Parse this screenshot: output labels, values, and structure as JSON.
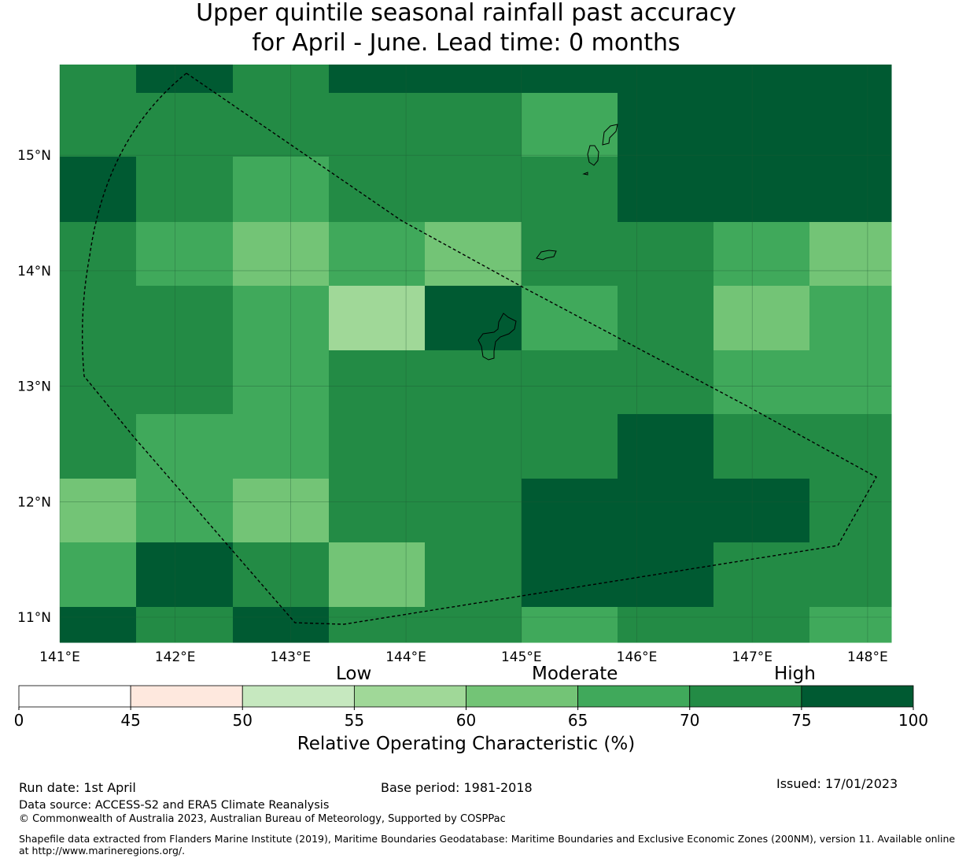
{
  "title": {
    "line1": "Upper quintile seasonal rainfall past accuracy",
    "line2": "for April - June. Lead time: 0 months"
  },
  "map": {
    "lon_range": [
      141.0,
      148.2
    ],
    "lat_range": [
      10.8,
      15.8
    ],
    "lon_labels": [
      "141°E",
      "142°E",
      "143°E",
      "144°E",
      "145°E",
      "146°E",
      "147°E",
      "148°E"
    ],
    "lat_labels": [
      "11°N",
      "12°N",
      "13°N",
      "14°N",
      "15°N"
    ],
    "class_colors": [
      "#ffffff",
      "#fee8de",
      "#c6e8bf",
      "#a0d898",
      "#73c476",
      "#40a95b",
      "#238b45",
      "#005a32"
    ],
    "grid_rows": [
      [
        6,
        7,
        6,
        7,
        7,
        7,
        7,
        7,
        7
      ],
      [
        6,
        6,
        6,
        6,
        6,
        5,
        7,
        7,
        7
      ],
      [
        7,
        6,
        5,
        6,
        6,
        6,
        7,
        7,
        7
      ],
      [
        6,
        5,
        4,
        5,
        4,
        6,
        6,
        5,
        4
      ],
      [
        6,
        6,
        5,
        3,
        7,
        5,
        6,
        4,
        5
      ],
      [
        6,
        6,
        5,
        6,
        6,
        6,
        6,
        5,
        5
      ],
      [
        6,
        5,
        5,
        6,
        6,
        6,
        7,
        6,
        6
      ],
      [
        4,
        5,
        4,
        6,
        6,
        7,
        7,
        7,
        6
      ],
      [
        5,
        7,
        6,
        4,
        6,
        7,
        7,
        6,
        6
      ],
      [
        7,
        6,
        7,
        6,
        6,
        5,
        6,
        6,
        5
      ]
    ]
  },
  "legend": {
    "category_low": "Low",
    "category_moderate": "Moderate",
    "category_high": "High",
    "ticks": [
      "0",
      "45",
      "50",
      "55",
      "60",
      "65",
      "70",
      "75",
      "100"
    ],
    "title": "Relative Operating Characteristic (%)"
  },
  "footer": {
    "run_date": "Run date: 1st April",
    "base_period": "Base period: 1981-2018",
    "issued": "Issued: 17/01/2023",
    "data_source": "Data source: ACCESS-S2 and ERA5 Climate Reanalysis",
    "copyright": "© Commonwealth of Australia 2023, Australian Bureau of Meteorology, Supported by COSPPac",
    "shapefile_line1": "Shapefile data extracted from Flanders Marine Institute (2019), Maritime Boundaries Geodatabase: Maritime Boundaries and Exclusive Economic Zones (200NM), version 11. Available online",
    "shapefile_line2": "at http://www.marineregions.org/."
  }
}
